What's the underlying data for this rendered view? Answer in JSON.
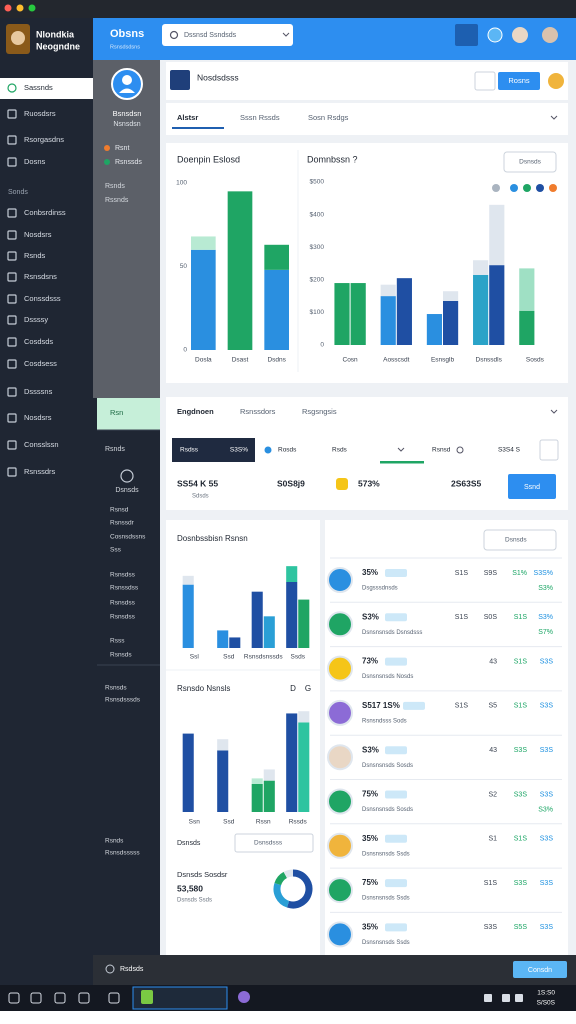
{
  "window": {
    "app_name": [
      "Nlondkia",
      "Neogndne"
    ]
  },
  "sidebar": {
    "section": "Sonds",
    "items": [
      "Sassnds",
      "Ruosdsrs",
      "Rsorgasdns",
      "Dosns",
      "Conbsrdinss",
      "Nosdsrs",
      "Rsnds",
      "Rsnsdsns",
      "Conssdsss",
      "Dssssy",
      "Cosdsds",
      "Cosdsess",
      "Dssssns",
      "Nosdsrs",
      "Consslssn",
      "Rsnssdrs"
    ]
  },
  "subnav": {
    "profile": [
      "Bsnsdsn",
      "Nsnsdsn"
    ],
    "status": [
      "Rsnt",
      "Rsnssds"
    ],
    "info": [
      "Rsnds",
      "Rssnds"
    ],
    "highlight": "Rsn",
    "section": "Rsnds",
    "user": "Dsnsds",
    "links": [
      "Rsnsd",
      "Rsnssdr",
      "Cosnsdssns",
      "Sss",
      "Rsnsdss",
      "Rsnssdss",
      "Rsnsdss",
      "Rsnsdss",
      "Rsss",
      "Rsnsds",
      "Rsnsds",
      "Rsnsdsssds",
      "Rsnds",
      "Rsnsdsssss"
    ]
  },
  "header": {
    "brand": "Obsns",
    "brand_sub": "Rsnsdsdsns",
    "search_placeholder": "Dssnsd Ssndsds"
  },
  "page": {
    "title": "Nosdsdsss",
    "button": "Rosns",
    "tabs": [
      "Alstsr",
      "Sssn Rssds",
      "Sosn Rsdgs"
    ]
  },
  "charts": [
    {
      "title": "Doenpin Eslosd",
      "categories": [
        "Dosla",
        "Dsast",
        "Dsdns"
      ],
      "ylim": [
        0,
        100
      ],
      "yticks": [
        0,
        50,
        100
      ],
      "series": [
        {
          "stack": "a",
          "color": "#2a8fe0",
          "values": [
            60,
            0,
            48
          ]
        },
        {
          "stack": "a",
          "color": "#b8ead3",
          "values": [
            8,
            0,
            0
          ]
        },
        {
          "stack": "a",
          "color": "#1fa564",
          "values": [
            0,
            95,
            15
          ]
        }
      ]
    },
    {
      "title": "Domnbssn ?",
      "filter": "Dsnsds",
      "categories": [
        "Cosn",
        "Aosscsdt",
        "Esnsglb",
        "Dsnssdls",
        "Sosds"
      ],
      "ylim": [
        0,
        500
      ],
      "yticks": [
        {
          "value": 0,
          "label": "0"
        },
        {
          "value": 100,
          "label": "$100"
        },
        {
          "value": 200,
          "label": "$200"
        },
        {
          "value": 300,
          "label": "$300"
        },
        {
          "value": 400,
          "label": "$400"
        },
        {
          "value": 500,
          "label": "$500"
        }
      ],
      "series": [
        {
          "stack": "a",
          "colors": [
            "#1fa564",
            "#2a8fe0",
            "#2a8fe0",
            "#2aa3c8",
            "#1fa564"
          ],
          "values": [
            190,
            150,
            95,
            215,
            105
          ]
        },
        {
          "stack": "a",
          "colors": [
            "#dfe6ee",
            "#dfe6ee",
            "#dfe6ee",
            "#dfe6ee",
            "#9fe0c4"
          ],
          "values": [
            0,
            35,
            0,
            45,
            130
          ]
        },
        {
          "stack": "b",
          "colors": [
            "#1fa564",
            "#1f4fa3",
            "#1f4fa3",
            "#1f4fa3",
            "#1fa564"
          ],
          "values": [
            190,
            205,
            135,
            245,
            0
          ]
        },
        {
          "stack": "b",
          "colors": [
            "#dfe6ee",
            "#dfe6ee",
            "#dfe6ee",
            "#dfe6ee",
            "#dfe6ee"
          ],
          "values": [
            0,
            0,
            30,
            185,
            0
          ]
        }
      ]
    },
    {
      "title": "Dosnbssbisn Rsnsn",
      "categories": [
        "Ssl",
        "Ssd",
        "Rsnsdsnssds",
        "Ssds"
      ],
      "ylim": [
        0,
        100
      ],
      "series": [
        {
          "stack": "a",
          "colors": [
            "#2a8fe0",
            "#2a8fe0",
            "#1f4fa3",
            "#1f4fa3"
          ],
          "values": [
            72,
            20,
            64,
            75
          ]
        },
        {
          "stack": "a",
          "colors": [
            "#dfe6ee",
            "#dfe6ee",
            "#dfe6ee",
            "#2ec4a0"
          ],
          "values": [
            10,
            0,
            0,
            18
          ]
        },
        {
          "stack": "b",
          "colors": [
            "#1f4fa3",
            "#1f4fa3",
            "#2a9fd6",
            "#1fa564"
          ],
          "values": [
            0,
            12,
            36,
            55
          ]
        }
      ]
    },
    {
      "title": "Rsnsdo Nsnsls",
      "icons": [
        "D",
        "G"
      ],
      "categories": [
        "Ssn",
        "Ssd",
        "Rssn",
        "Rssds"
      ],
      "ylim": [
        0,
        100
      ],
      "series": [
        {
          "stack": "a",
          "colors": [
            "#1f4fa3",
            "#1f4fa3",
            "#1fa564",
            "#1f4fa3"
          ],
          "values": [
            70,
            55,
            25,
            88
          ]
        },
        {
          "stack": "a",
          "colors": [
            "#dfe6ee",
            "#dfe6ee",
            "#b8ead3",
            "#dfe6ee"
          ],
          "values": [
            0,
            10,
            5,
            0
          ]
        },
        {
          "stack": "b",
          "colors": [
            "#2a8fe0",
            "#2a8fe0",
            "#1fa564",
            "#2ec4a0"
          ],
          "values": [
            0,
            0,
            28,
            80
          ]
        },
        {
          "stack": "b",
          "colors": [
            "#dfe6ee",
            "#dfe6ee",
            "#dfe6ee",
            "#dfe6ee"
          ],
          "values": [
            0,
            0,
            10,
            10
          ]
        }
      ]
    }
  ],
  "metrics": {
    "tabs": [
      "Engdnoen",
      "Rsnssdors",
      "Rsgsngsis"
    ],
    "filters": [
      "Rsdss",
      "S3S%",
      "Rosds",
      "Rsds",
      "Rsnsd",
      "S3S4 S"
    ],
    "values": [
      "SS54 K 55",
      "S0S8j9",
      "573%",
      "2S63S5"
    ],
    "value_sub": "Sdsds",
    "button": "Ssnd"
  },
  "controls": {
    "label": "Dsnsds",
    "select": "Dsnsdsss"
  },
  "donut": {
    "title": "Dsnsds Sosdsr",
    "value": "53,580",
    "sub": "Dsnsds Ssds",
    "values": [
      55,
      25,
      12,
      8
    ],
    "colors": [
      "#1f4fa3",
      "#2a9fd6",
      "#1fa564",
      "#dfe6ee"
    ]
  },
  "list": {
    "filter": "Dsnsds",
    "rows": [
      {
        "pct": "35%",
        "label": "Dsgsssdnsds",
        "cols": [
          "S1S",
          "S9S",
          "S1%",
          "S3S%"
        ],
        "extra": "S3%"
      },
      {
        "pct": "S3%",
        "label": "Dsnsnsnsds Dsnsdsss",
        "cols": [
          "S1S",
          "S0S",
          "S1S",
          "S3%"
        ],
        "extra": "S7%"
      },
      {
        "pct": "73%",
        "label": "Dsnsnsnsds Nosds",
        "cols": [
          "43",
          "S1S",
          "S3S"
        ]
      },
      {
        "pct": "S517 1S%",
        "label": "Rsnsndsss Sods",
        "cols": [
          "S1S",
          "S5",
          "S1S",
          "S3S"
        ]
      },
      {
        "pct": "S3%",
        "label": "Dsnsnsnsds Sosds",
        "cols": [
          "43",
          "S3S",
          "S3S"
        ]
      },
      {
        "pct": "75%",
        "label": "Dsnsnsnsds Sosds",
        "cols": [
          "S2",
          "S3S",
          "S3S"
        ],
        "extra": "S3%"
      },
      {
        "pct": "35%",
        "label": "Dsnsnsnsds Ssds",
        "cols": [
          "S1",
          "S1S",
          "S3S"
        ]
      },
      {
        "pct": "75%",
        "label": "Dsnsnsnsds Ssds",
        "cols": [
          "S1S",
          "S3S",
          "S3S"
        ]
      },
      {
        "pct": "35%",
        "label": "Dsnsnsnsds Ssds",
        "cols": [
          "S3S",
          "S5S",
          "S3S"
        ]
      }
    ]
  },
  "footer": {
    "label": "Rsdsds",
    "button": "Consdn"
  },
  "taskbar": {
    "time": "1S:S0",
    "date": "S/S0S"
  }
}
